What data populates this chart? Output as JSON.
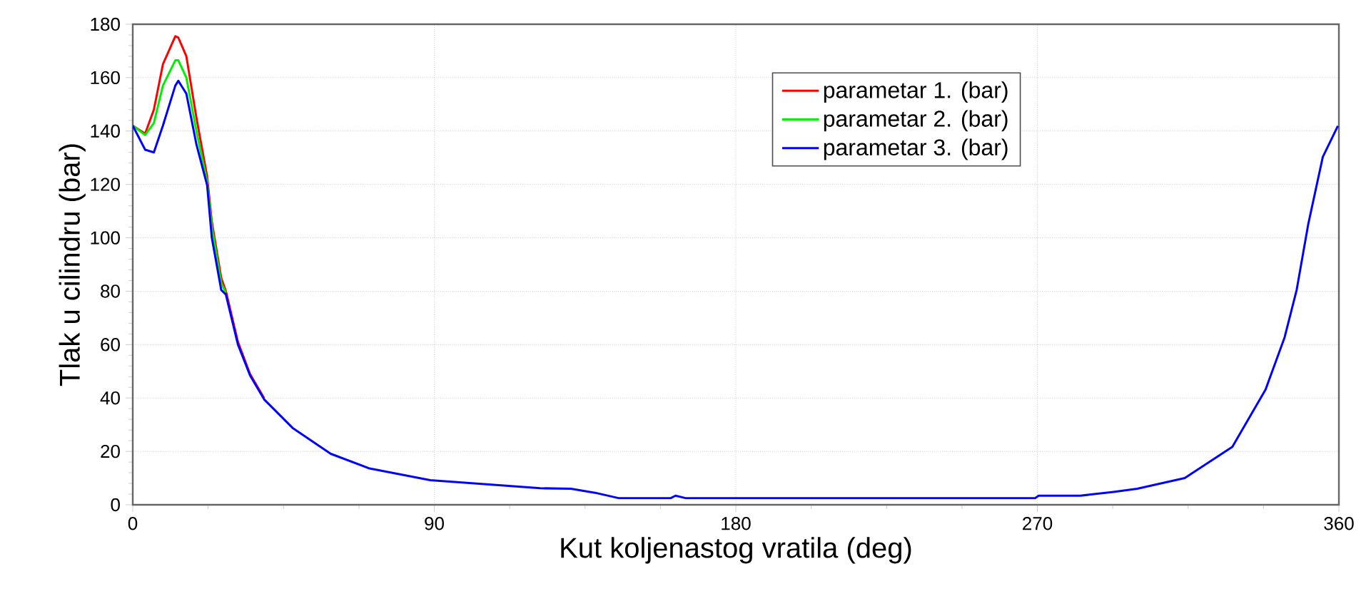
{
  "chart_data": {
    "type": "line",
    "xlabel": "Kut koljenastog vratila (deg)",
    "ylabel": "Tlak u cilindru (bar)",
    "x": [
      0,
      3.7,
      6.3,
      9,
      12.7,
      13.6,
      16,
      19,
      22.2,
      23.6,
      26.4,
      27.8,
      31.4,
      35,
      39.2,
      47.7,
      59.1,
      70.4,
      88.8,
      110,
      121.6,
      130.8,
      138,
      145,
      160.6,
      162,
      165,
      269.3,
      270.4,
      282.8,
      292.7,
      299.8,
      314,
      328.2,
      338.1,
      343.8,
      347.4,
      350.9,
      355.2,
      359.7
    ],
    "series": [
      {
        "name": "parametar 1. (bar)",
        "color": "#ff0000",
        "values": [
          142,
          139,
          148,
          165,
          175.5,
          175,
          168,
          145,
          123,
          106,
          85,
          80,
          61,
          49,
          40,
          null,
          null,
          null,
          null,
          null,
          null,
          null,
          null,
          null,
          null,
          null,
          null,
          null,
          null,
          null,
          null,
          null,
          null,
          null,
          null,
          null,
          null,
          null,
          null,
          null
        ]
      },
      {
        "name": "parametar 2. (bar)",
        "color": "#00ee00",
        "values": [
          142,
          138.5,
          143,
          157,
          166.5,
          166.5,
          160,
          140,
          121,
          104,
          83,
          79.5,
          null,
          null,
          null,
          null,
          null,
          null,
          null,
          null,
          null,
          null,
          null,
          null,
          null,
          null,
          null,
          null,
          null,
          null,
          null,
          null,
          null,
          null,
          null,
          null,
          null,
          null,
          null,
          null
        ]
      },
      {
        "name": "parametar 3. (bar)",
        "color": "#0000ff",
        "values": [
          142,
          133,
          132,
          142,
          157,
          158.8,
          154,
          135,
          119.7,
          100,
          80.5,
          78.7,
          60,
          48.5,
          39.5,
          28.8,
          19.1,
          13.7,
          9.2,
          7.3,
          6.2,
          6,
          4.5,
          2.5,
          2.5,
          3.4,
          2.5,
          2.5,
          3.4,
          3.4,
          4.8,
          6,
          10,
          21.7,
          43.1,
          62.7,
          80.5,
          105.4,
          130.3,
          141.9
        ]
      }
    ],
    "xlim": [
      0,
      360
    ],
    "xticks": [
      0,
      90,
      180,
      270,
      360
    ],
    "ylim": [
      0,
      180
    ],
    "yticks": [
      0,
      20,
      40,
      60,
      80,
      100,
      120,
      140,
      160,
      180
    ],
    "grid": true,
    "legend": "top right",
    "marker": "none",
    "line_style": "solid"
  }
}
